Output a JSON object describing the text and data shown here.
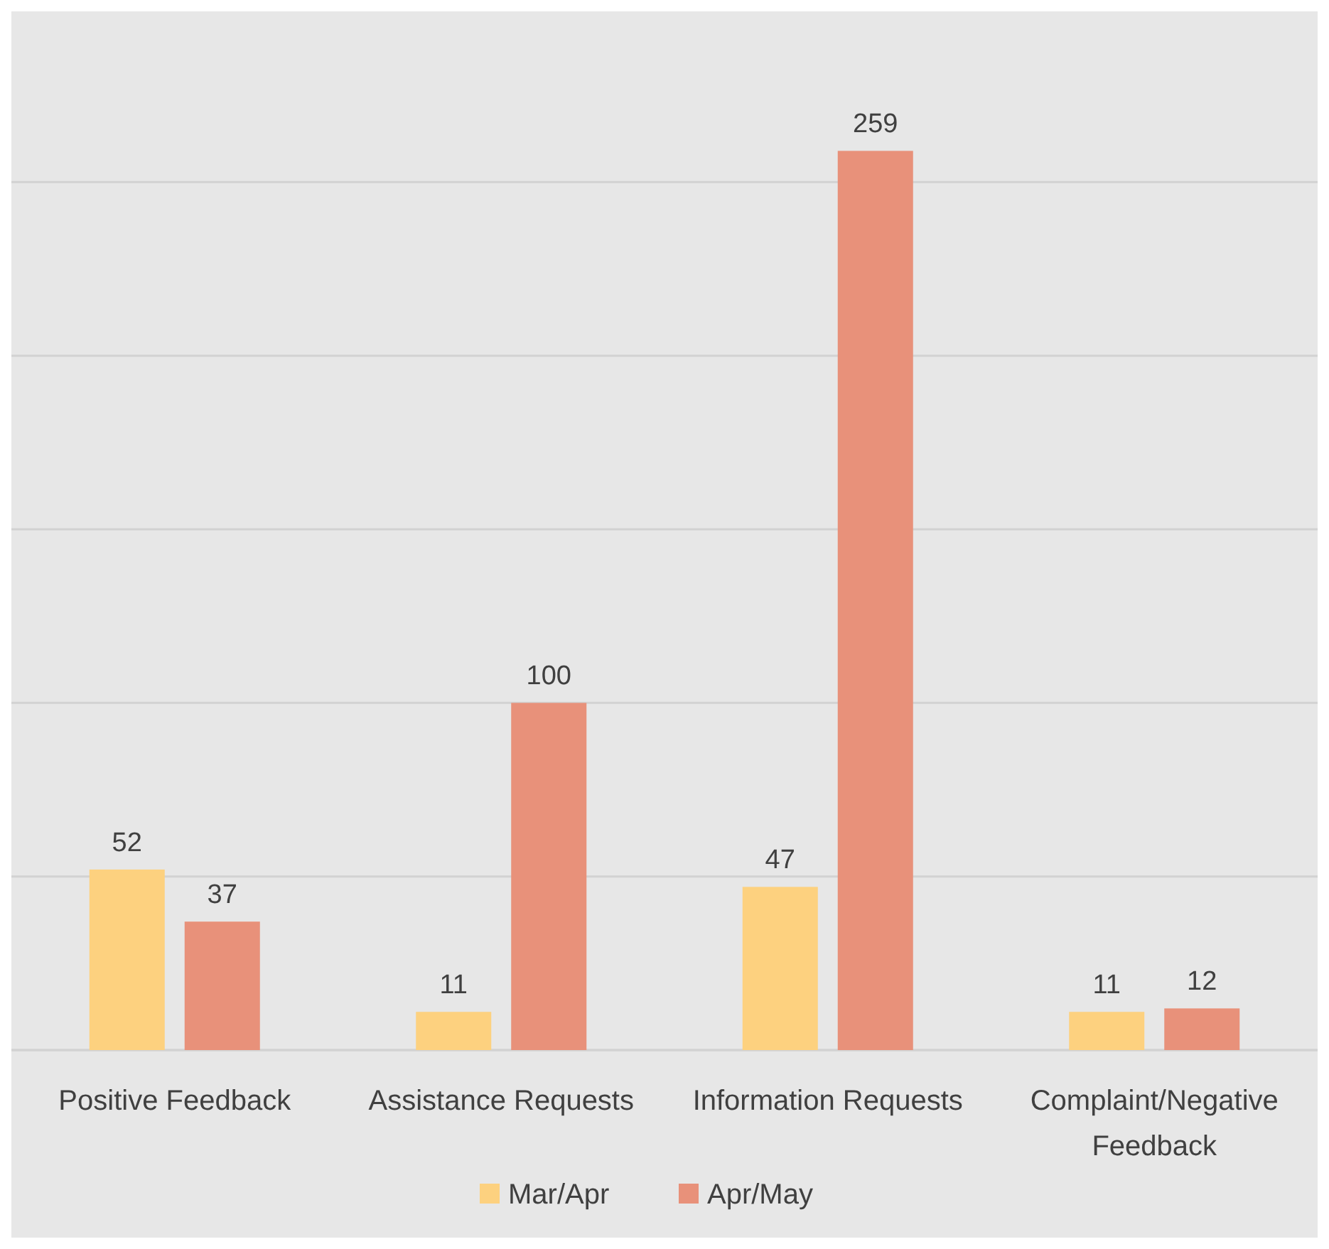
{
  "chart_data": {
    "type": "bar",
    "categories": [
      "Positive Feedback",
      "Assistance Requests",
      "Information Requests",
      "Complaint/Negative Feedback"
    ],
    "series": [
      {
        "name": "Mar/Apr",
        "color": "#fdd17f",
        "values": [
          52,
          11,
          47,
          11
        ]
      },
      {
        "name": "Apr/May",
        "color": "#e8917a",
        "values": [
          37,
          100,
          259,
          12
        ]
      }
    ],
    "ylim": [
      0,
      300
    ],
    "yticks": [
      0,
      50,
      100,
      150,
      200,
      250,
      300
    ],
    "tick_labels": "x",
    "grid": "y",
    "data_labels": true,
    "legend": "bottom"
  }
}
